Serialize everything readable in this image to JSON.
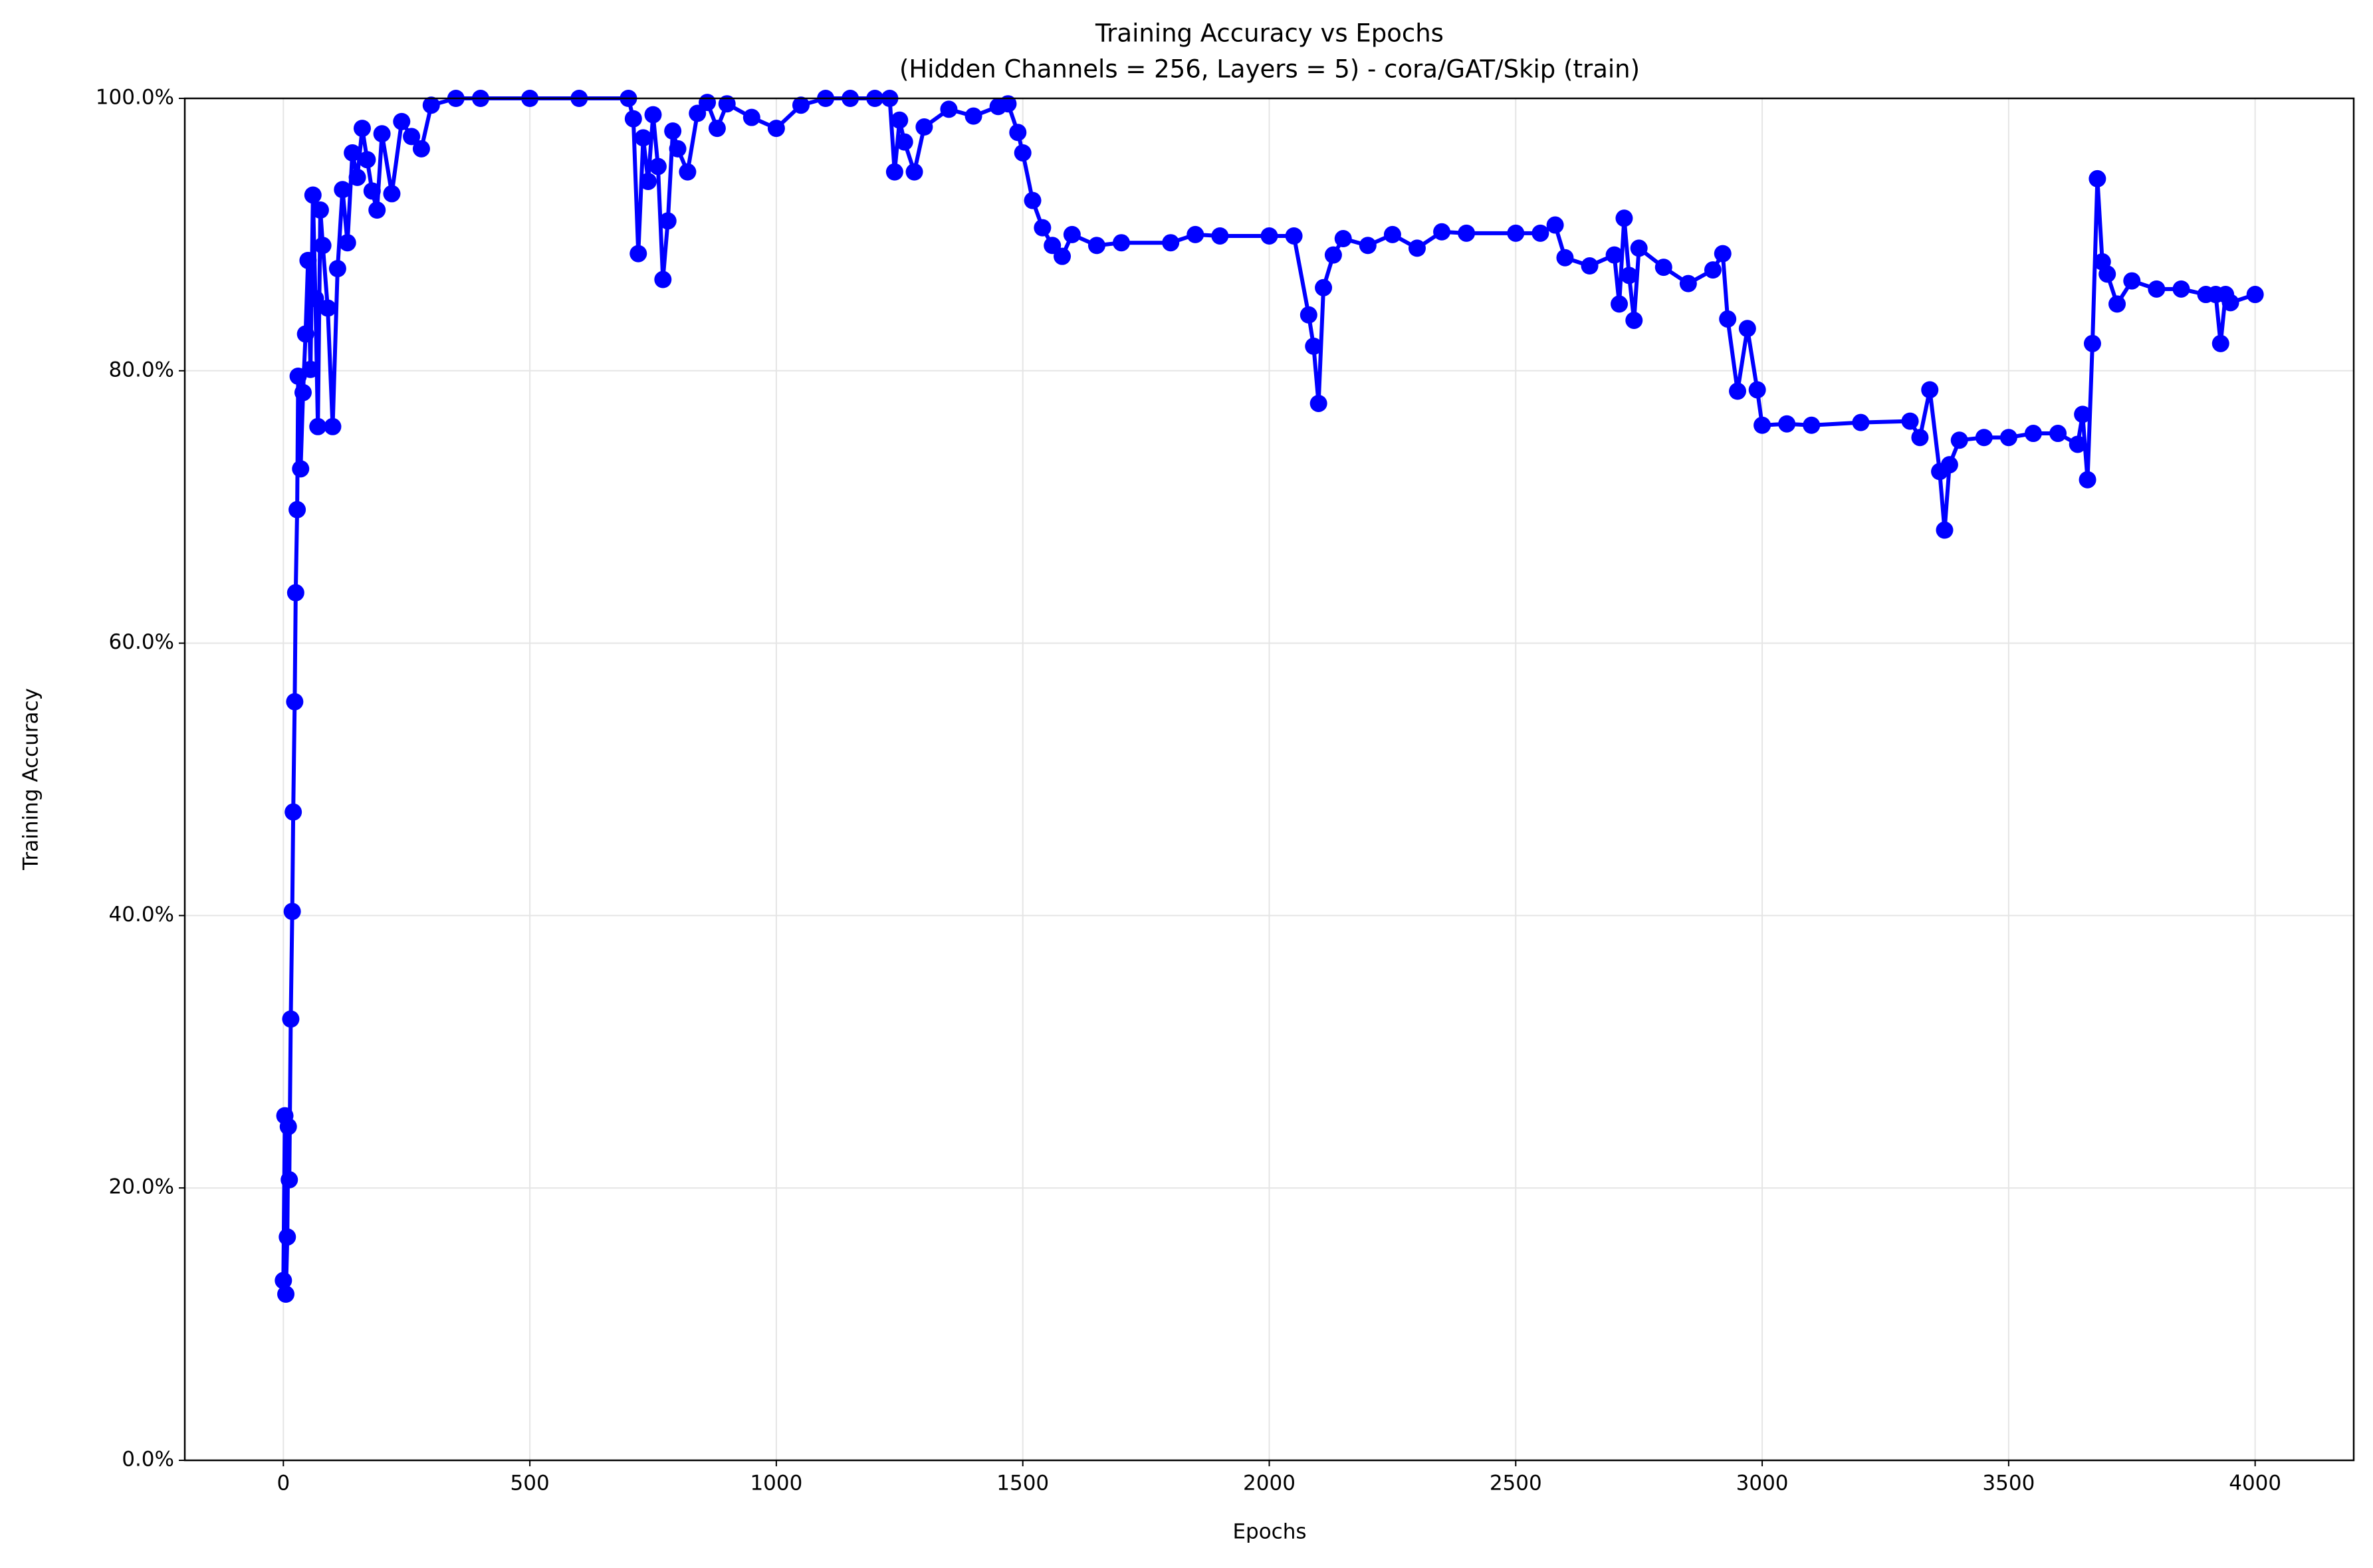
{
  "chart_data": {
    "type": "line",
    "title": "Training Accuracy vs Epochs",
    "subtitle": "(Hidden Channels = 256, Layers = 5) - cora/GAT/Skip (train)",
    "x_label": "Epochs",
    "y_label": "Training Accuracy",
    "x": [
      0,
      3,
      5,
      8,
      10,
      12,
      15,
      18,
      20,
      23,
      25,
      28,
      30,
      35,
      40,
      45,
      50,
      55,
      60,
      65,
      70,
      75,
      80,
      90,
      100,
      110,
      120,
      130,
      140,
      150,
      160,
      170,
      180,
      190,
      200,
      220,
      240,
      260,
      280,
      300,
      350,
      400,
      500,
      600,
      700,
      710,
      720,
      730,
      740,
      750,
      760,
      770,
      780,
      790,
      800,
      820,
      840,
      860,
      880,
      900,
      950,
      1000,
      1050,
      1100,
      1150,
      1200,
      1230,
      1240,
      1250,
      1260,
      1280,
      1300,
      1350,
      1400,
      1450,
      1470,
      1490,
      1500,
      1520,
      1540,
      1560,
      1580,
      1600,
      1650,
      1700,
      1800,
      1850,
      1900,
      2000,
      2050,
      2080,
      2090,
      2100,
      2110,
      2130,
      2150,
      2200,
      2250,
      2300,
      2350,
      2400,
      2500,
      2550,
      2580,
      2600,
      2650,
      2700,
      2710,
      2720,
      2730,
      2740,
      2750,
      2800,
      2850,
      2900,
      2920,
      2930,
      2950,
      2970,
      2990,
      3000,
      3050,
      3100,
      3200,
      3300,
      3320,
      3340,
      3360,
      3370,
      3380,
      3400,
      3450,
      3500,
      3550,
      3600,
      3640,
      3650,
      3660,
      3670,
      3680,
      3690,
      3700,
      3720,
      3750,
      3800,
      3850,
      3900,
      3920,
      3930,
      3940,
      3950,
      4000
    ],
    "series": [
      {
        "color": "#0000ff",
        "values": [
          13.2,
          25.3,
          12.2,
          16.4,
          24.5,
          20.6,
          32.4,
          40.3,
          47.6,
          55.7,
          63.7,
          69.8,
          79.6,
          72.8,
          78.4,
          82.7,
          88.1,
          80.1,
          92.9,
          85.3,
          75.9,
          91.8,
          89.2,
          84.6,
          75.9,
          87.5,
          93.3,
          89.4,
          96.0,
          94.2,
          97.8,
          95.5,
          93.2,
          91.8,
          97.4,
          93.0,
          98.3,
          97.2,
          96.3,
          99.5,
          100,
          100,
          100,
          100,
          100,
          98.5,
          88.6,
          97.1,
          93.9,
          98.8,
          95.0,
          86.7,
          91.0,
          97.6,
          96.3,
          94.6,
          98.9,
          99.7,
          97.8,
          99.6,
          98.6,
          97.8,
          99.5,
          100,
          100,
          100,
          100,
          94.6,
          98.4,
          96.8,
          94.6,
          97.9,
          99.2,
          98.7,
          99.4,
          99.6,
          97.5,
          96.0,
          92.5,
          90.5,
          89.2,
          88.4,
          90.0,
          89.2,
          89.4,
          89.4,
          90.0,
          89.9,
          89.9,
          89.9,
          84.1,
          81.8,
          77.6,
          86.1,
          88.5,
          89.7,
          89.2,
          90.0,
          89.0,
          90.2,
          90.1,
          90.1,
          90.1,
          90.7,
          88.3,
          87.7,
          88.5,
          84.9,
          91.2,
          87.0,
          83.7,
          89.0,
          87.6,
          86.4,
          87.4,
          88.6,
          83.8,
          78.5,
          83.1,
          78.6,
          76.0,
          76.1,
          76.0,
          76.2,
          76.3,
          75.1,
          78.6,
          72.6,
          68.3,
          73.1,
          74.9,
          75.1,
          75.1,
          75.4,
          75.4,
          74.6,
          76.8,
          72.0,
          82.0,
          94.1,
          88.0,
          87.1,
          84.9,
          86.6,
          86.0,
          86.0,
          85.6,
          85.6,
          82.0,
          85.6,
          85.0,
          85.6
        ]
      }
    ],
    "xlim": [
      -200,
      4200
    ],
    "xticks": [
      0,
      500,
      1000,
      1500,
      2000,
      2500,
      3000,
      3500,
      4000
    ],
    "ylim": [
      0,
      100
    ],
    "yticks": [
      {
        "value": 0,
        "label": "0.0%"
      },
      {
        "value": 20,
        "label": "20.0%"
      },
      {
        "value": 40,
        "label": "40.0%"
      },
      {
        "value": 60,
        "label": "60.0%"
      },
      {
        "value": 80,
        "label": "80.0%"
      },
      {
        "value": 100,
        "label": "100.0%"
      }
    ],
    "grid": true
  }
}
